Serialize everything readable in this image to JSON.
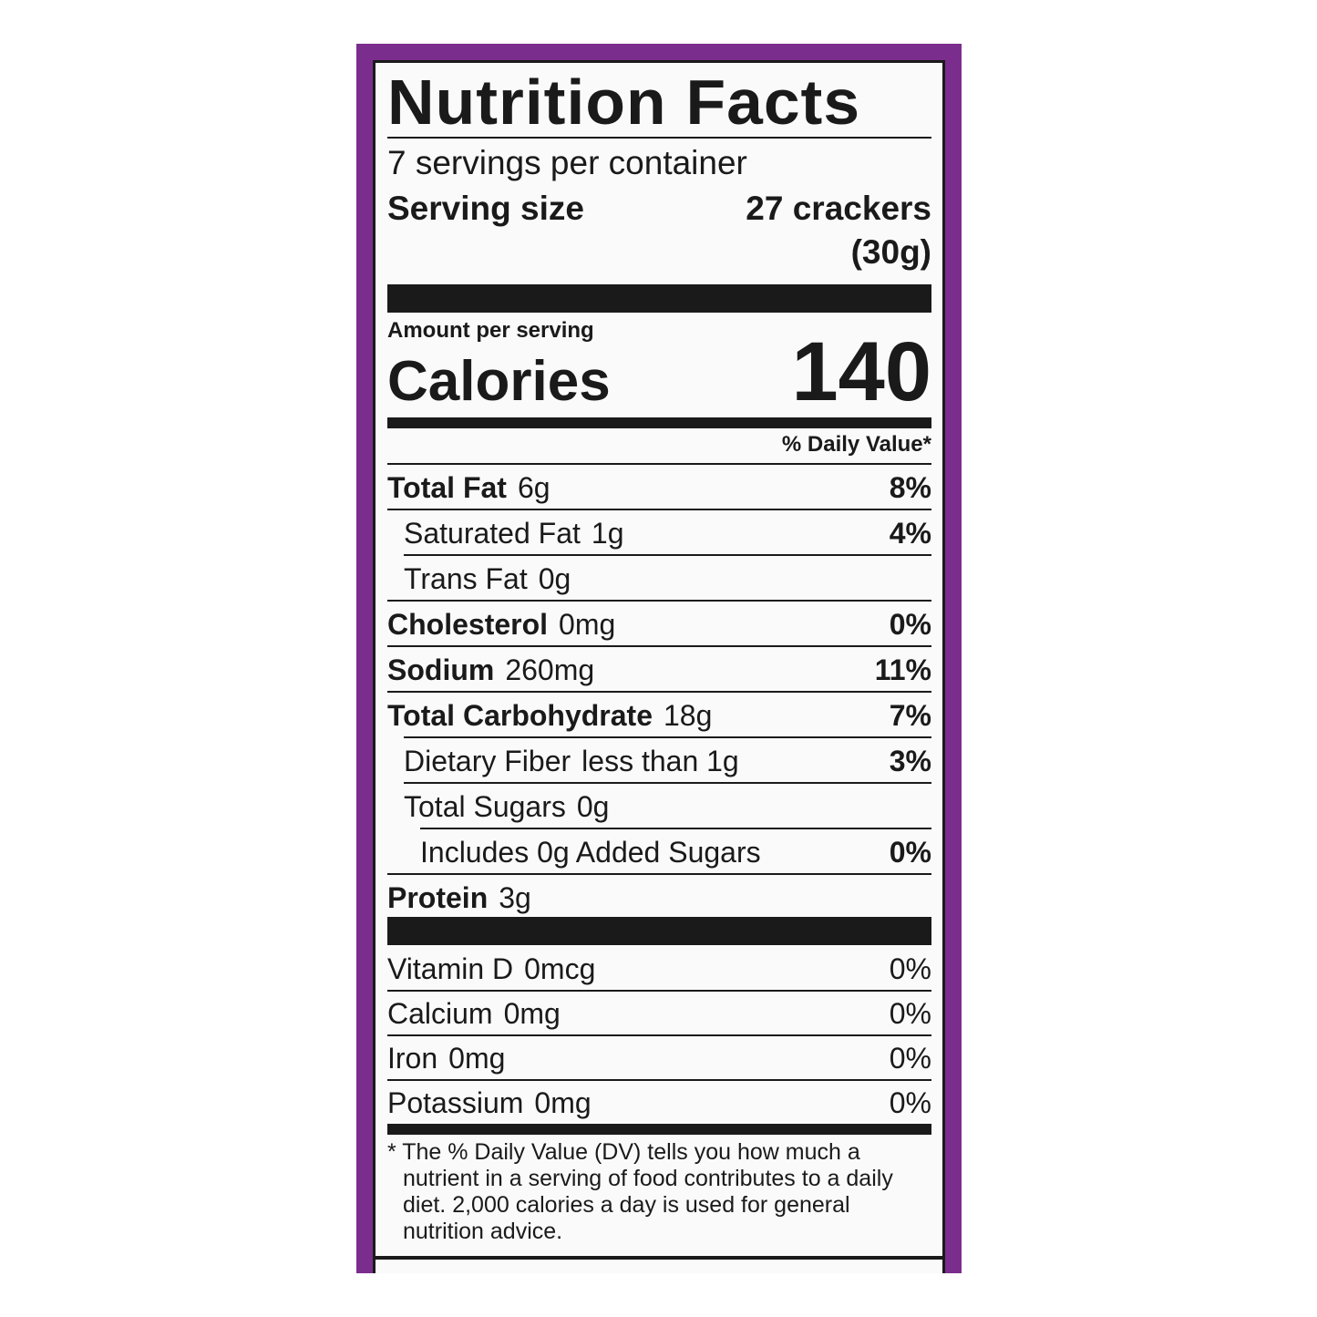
{
  "label": {
    "title": "Nutrition Facts",
    "servings_per_container": "7 servings per container",
    "serving_size_label": "Serving size",
    "serving_size_value": "27 crackers",
    "serving_size_weight": "(30g)",
    "amount_per_serving": "Amount per serving",
    "calories_label": "Calories",
    "calories_value": "140",
    "dv_header": "% Daily Value*",
    "nutrients": [
      {
        "name": "Total Fat",
        "amount": "6g",
        "dv": "8%"
      },
      {
        "name": "Saturated Fat",
        "amount": "1g",
        "dv": "4%"
      },
      {
        "name": "Trans Fat",
        "amount": "0g",
        "dv": ""
      },
      {
        "name": "Cholesterol",
        "amount": "0mg",
        "dv": "0%"
      },
      {
        "name": "Sodium",
        "amount": "260mg",
        "dv": "11%"
      },
      {
        "name": "Total Carbohydrate",
        "amount": "18g",
        "dv": "7%"
      },
      {
        "name": "Dietary Fiber",
        "amount": "less than 1g",
        "dv": "3%"
      },
      {
        "name": "Total Sugars",
        "amount": "0g",
        "dv": ""
      },
      {
        "name": "Includes 0g Added Sugars",
        "amount": "",
        "dv": "0%"
      },
      {
        "name": "Protein",
        "amount": "3g",
        "dv": ""
      }
    ],
    "vitamins": [
      {
        "name": "Vitamin D",
        "amount": "0mcg",
        "dv": "0%"
      },
      {
        "name": "Calcium",
        "amount": "0mg",
        "dv": "0%"
      },
      {
        "name": "Iron",
        "amount": "0mg",
        "dv": "0%"
      },
      {
        "name": "Potassium",
        "amount": "0mg",
        "dv": "0%"
      }
    ],
    "footnote": "* The % Daily Value (DV) tells you how much a nutrient in a serving of food contributes to a daily diet. 2,000 calories a day is used for general nutrition advice."
  },
  "colors": {
    "border": "#7b2d8e",
    "ink": "#1a1a1a"
  }
}
